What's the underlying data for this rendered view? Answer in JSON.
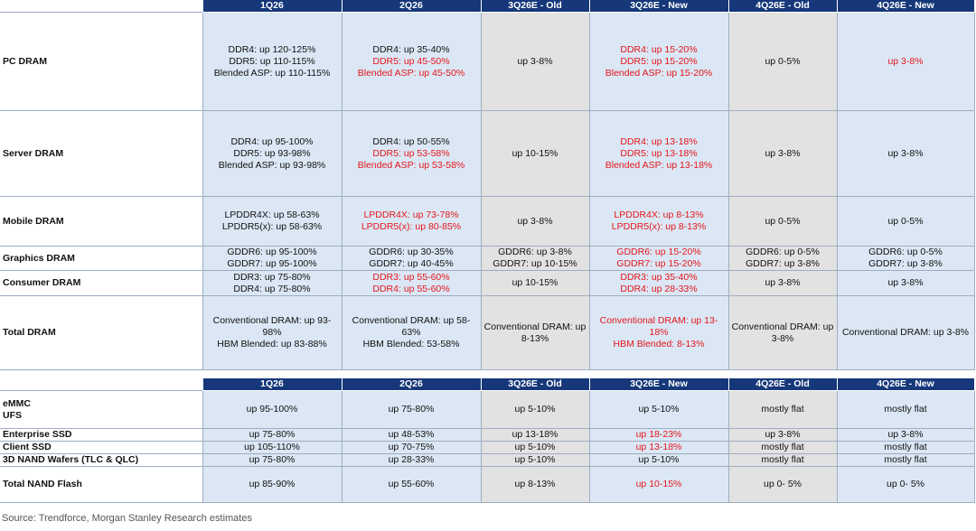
{
  "dram_table": {
    "headers": [
      "1Q26",
      "2Q26",
      "3Q26E - Old",
      "3Q26E - New",
      "4Q26E - Old",
      "4Q26E - New"
    ],
    "rows": [
      {
        "label": "PC DRAM",
        "cells": [
          [
            "DDR4: up 120-125%",
            "DDR5: up 110-115%",
            "Blended ASP: up 110-115%"
          ],
          [
            "DDR4: up 35-40%",
            "DDR5: up 45-50%",
            "Blended ASP: up 45-50%"
          ],
          [
            "up 3-8%"
          ],
          [
            "DDR4: up 15-20%",
            "DDR5: up 15-20%",
            "Blended ASP: up 15-20%"
          ],
          [
            "up 0-5%"
          ],
          [
            "up 3-8%"
          ]
        ]
      },
      {
        "label": "Server DRAM",
        "cells": [
          [
            "DDR4: up 95-100%",
            "DDR5: up 93-98%",
            "Blended ASP: up 93-98%"
          ],
          [
            "DDR4: up 50-55%",
            "DDR5: up 53-58%",
            "Blended ASP: up 53-58%"
          ],
          [
            "up 10-15%"
          ],
          [
            "DDR4: up 13-18%",
            "DDR5: up 13-18%",
            "Blended ASP: up 13-18%"
          ],
          [
            "up 3-8%"
          ],
          [
            "up 3-8%"
          ]
        ]
      },
      {
        "label": "Mobile DRAM",
        "cells": [
          [
            "LPDDR4X: up 58-63%",
            "LPDDR5(x): up 58-63%"
          ],
          [
            "LPDDR4X: up 73-78%",
            "LPDDR5(x): up 80-85%"
          ],
          [
            "up 3-8%"
          ],
          [
            "LPDDR4X: up 8-13%",
            "LPDDR5(x): up 8-13%"
          ],
          [
            "up 0-5%"
          ],
          [
            "up 0-5%"
          ]
        ]
      },
      {
        "label": "Graphics DRAM",
        "cells": [
          [
            "GDDR6: up 95-100%",
            "GDDR7: up 95-100%"
          ],
          [
            "GDDR6: up 30-35%",
            "GDDR7: up 40-45%"
          ],
          [
            "GDDR6: up 3-8%",
            "GDDR7: up 10-15%"
          ],
          [
            "GDDR6: up 15-20%",
            "GDDR7: up 15-20%"
          ],
          [
            "GDDR6: up 0-5%",
            "GDDR7: up 3-8%"
          ],
          [
            "GDDR6: up 0-5%",
            "GDDR7: up 3-8%"
          ]
        ]
      },
      {
        "label": "Consumer DRAM",
        "cells": [
          [
            "DDR3: up 75-80%",
            "DDR4: up 75-80%"
          ],
          [
            "DDR3: up 55-60%",
            "DDR4: up 55-60%"
          ],
          [
            "up 10-15%"
          ],
          [
            "DDR3: up 35-40%",
            "DDR4: up 28-33%"
          ],
          [
            "up 3-8%"
          ],
          [
            "up 3-8%"
          ]
        ]
      },
      {
        "label": "Total DRAM",
        "cells": [
          [
            "Conventional DRAM: up 93-98%",
            "HBM Blended: up 83-88%"
          ],
          [
            "Conventional DRAM: up 58-63%",
            "HBM Blended: 53-58%"
          ],
          [
            "Conventional DRAM: up 8-13%"
          ],
          [
            "Conventional DRAM: up 13-18%",
            "HBM Blended: 8-13%"
          ],
          [
            "Conventional DRAM: up 3-8%"
          ],
          [
            "Conventional DRAM: up 3-8%"
          ]
        ]
      }
    ]
  },
  "nand_table": {
    "headers": [
      "1Q26",
      "2Q26",
      "3Q26E - Old",
      "3Q26E - New",
      "4Q26E - Old",
      "4Q26E - New"
    ],
    "rows": [
      {
        "label": "eMMC\nUFS",
        "cells": [
          [
            "up 95-100%"
          ],
          [
            "up 75-80%"
          ],
          [
            "up 5-10%"
          ],
          [
            "up 5-10%"
          ],
          [
            "mostly flat"
          ],
          [
            "mostly flat"
          ]
        ]
      },
      {
        "label": "Enterprise SSD",
        "cells": [
          [
            "up 75-80%"
          ],
          [
            "up 48-53%"
          ],
          [
            "up 13-18%"
          ],
          [
            "up 18-23%"
          ],
          [
            "up 3-8%"
          ],
          [
            "up 3-8%"
          ]
        ]
      },
      {
        "label": "Client SSD",
        "cells": [
          [
            "up 105-110%"
          ],
          [
            "up 70-75%"
          ],
          [
            "up 5-10%"
          ],
          [
            "up 13-18%"
          ],
          [
            "mostly flat"
          ],
          [
            "mostly flat"
          ]
        ]
      },
      {
        "label": "3D NAND Wafers (TLC & QLC)",
        "cells": [
          [
            "up 75-80%"
          ],
          [
            "up 28-33%"
          ],
          [
            "up 5-10%"
          ],
          [
            "up 5-10%"
          ],
          [
            "mostly flat"
          ],
          [
            "mostly flat"
          ]
        ]
      },
      {
        "label": "Total NAND Flash",
        "cells": [
          [
            "up 85-90%"
          ],
          [
            "up 55-60%"
          ],
          [
            "up 8-13%"
          ],
          [
            "up 10-15%"
          ],
          [
            "up 0- 5%"
          ],
          [
            "up 0- 5%"
          ]
        ]
      }
    ]
  },
  "highlight_color": "#e5161c",
  "source": "Source: Trendforce, Morgan Stanley Research estimates"
}
